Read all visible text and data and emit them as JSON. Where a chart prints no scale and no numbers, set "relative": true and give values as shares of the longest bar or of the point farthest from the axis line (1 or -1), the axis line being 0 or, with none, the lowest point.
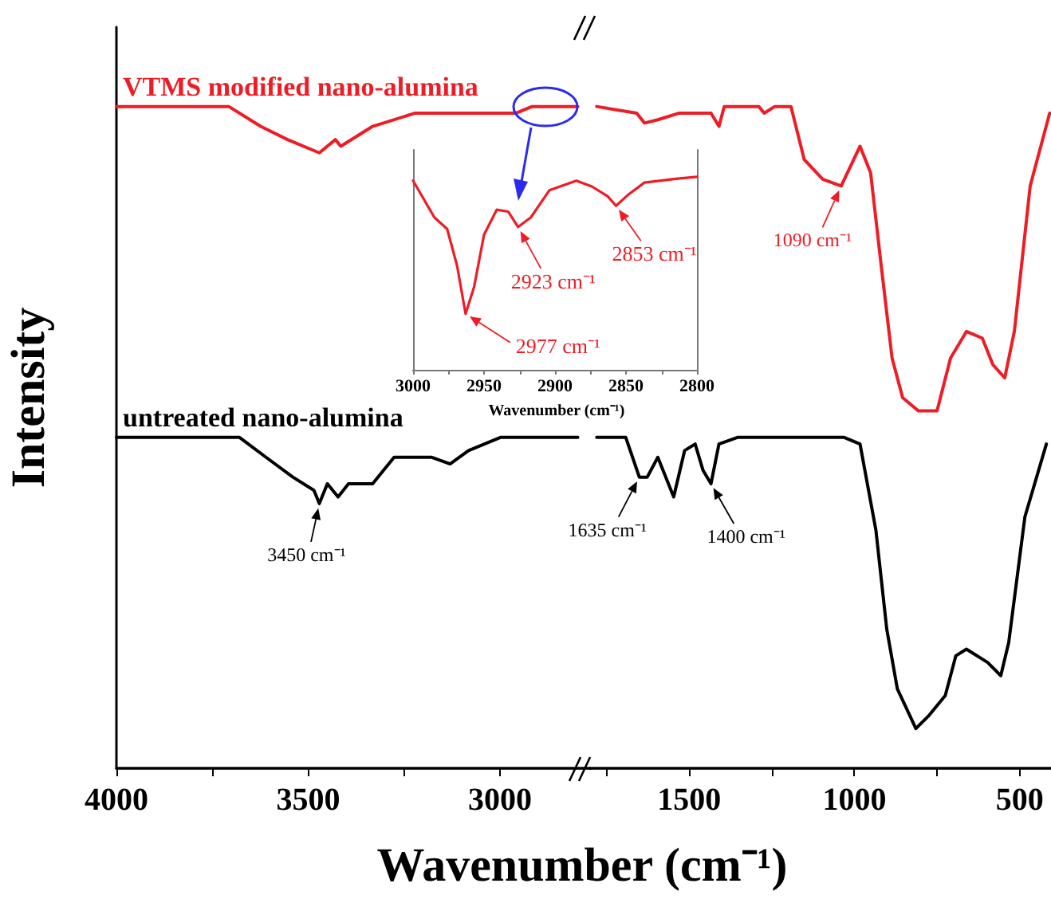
{
  "chart_data": [
    {
      "type": "line",
      "xlabel": "Wavenumber (cm⁻¹)",
      "ylabel": "Intensity",
      "relative": true,
      "xlim": [
        4000,
        2765
      ],
      "xticks": [
        4000,
        {
          "value": 3750,
          "label": null
        },
        3500,
        {
          "value": 3250,
          "label": null
        },
        3000
      ],
      "series": [
        {
          "name": "VTMS modified nano-alumina",
          "color": "#ee1c24",
          "x": [
            4000,
            3707,
            3624,
            3554,
            3471,
            3429,
            3415,
            3332,
            3221,
            3096,
            3062,
            2958,
            2916,
            2797
          ],
          "values": [
            1.0,
            1.0,
            0.97,
            0.95,
            0.93,
            0.95,
            0.94,
            0.97,
            0.99,
            0.99,
            0.99,
            0.99,
            1.0,
            1.0
          ]
        },
        {
          "name": "untreated nano-alumina",
          "color": "#000000",
          "x": [
            4000,
            3679,
            3610,
            3540,
            3485,
            3471,
            3450,
            3422,
            3395,
            3332,
            3276,
            3179,
            3130,
            3082,
            2999,
            2797
          ],
          "values": [
            0.5,
            0.5,
            0.47,
            0.44,
            0.42,
            0.4,
            0.43,
            0.41,
            0.43,
            0.43,
            0.47,
            0.47,
            0.46,
            0.48,
            0.5,
            0.5
          ]
        }
      ],
      "annotations": [
        {
          "text": "3450 cm⁻¹",
          "x": 3471,
          "y": 0.4
        }
      ]
    },
    {
      "type": "line",
      "relative": true,
      "xlim": [
        1800,
        405
      ],
      "xticks": [
        {
          "value": 1750,
          "label": null
        },
        1500,
        {
          "value": 1250,
          "label": null
        },
        1000,
        {
          "value": 750,
          "label": null
        },
        500
      ],
      "series": [
        {
          "color": "#ee1c24",
          "x": [
            1780,
            1659,
            1635,
            1595,
            1530,
            1482,
            1434,
            1410,
            1394,
            1289,
            1273,
            1241,
            1192,
            1152,
            1096,
            1040,
            983,
            951,
            919,
            886,
            854,
            806,
            750,
            709,
            661,
            613,
            581,
            545,
            516,
            468,
            409
          ],
          "values": [
            1.0,
            0.99,
            0.975,
            0.98,
            0.99,
            0.99,
            0.99,
            0.97,
            1.0,
            1.0,
            0.99,
            1.0,
            1.0,
            0.92,
            0.89,
            0.88,
            0.94,
            0.9,
            0.76,
            0.62,
            0.56,
            0.54,
            0.54,
            0.62,
            0.66,
            0.65,
            0.61,
            0.59,
            0.66,
            0.88,
            0.99
          ]
        },
        {
          "color": "#000000",
          "x": [
            1780,
            1692,
            1651,
            1627,
            1595,
            1547,
            1514,
            1482,
            1458,
            1434,
            1410,
            1354,
            1031,
            983,
            935,
            902,
            870,
            814,
            774,
            725,
            693,
            661,
            597,
            557,
            533,
            484,
            419
          ],
          "values": [
            0.5,
            0.5,
            0.44,
            0.44,
            0.47,
            0.41,
            0.48,
            0.49,
            0.45,
            0.43,
            0.49,
            0.5,
            0.5,
            0.49,
            0.36,
            0.21,
            0.12,
            0.06,
            0.08,
            0.11,
            0.17,
            0.18,
            0.16,
            0.14,
            0.19,
            0.38,
            0.49
          ]
        }
      ],
      "annotations": [
        {
          "text": "1635 cm⁻¹",
          "x": 1651,
          "y": 0.44
        },
        {
          "text": "1400 cm⁻¹",
          "x": 1434,
          "y": 0.43
        },
        {
          "text": "1090 cm⁻¹",
          "x": 1040,
          "y": 0.88
        }
      ]
    },
    {
      "type": "line",
      "xlabel": "Wavenumber (cm⁻¹)",
      "relative": true,
      "xlim": [
        3000,
        2800
      ],
      "xticks": [
        3000,
        {
          "value": 2975,
          "label": null
        },
        2950,
        {
          "value": 2925,
          "label": null
        },
        2900,
        {
          "value": 2875,
          "label": null
        },
        2850,
        {
          "value": 2825,
          "label": null
        },
        2800
      ],
      "series": [
        {
          "color": "#ee1c24",
          "x": [
            3000,
            2985,
            2976,
            2969,
            2963,
            2957,
            2950,
            2941,
            2933,
            2926,
            2917,
            2904,
            2885,
            2874,
            2863,
            2857,
            2848,
            2837,
            2815,
            2800
          ],
          "values": [
            0.98,
            0.79,
            0.73,
            0.54,
            0.29,
            0.43,
            0.7,
            0.83,
            0.82,
            0.74,
            0.79,
            0.93,
            0.98,
            0.95,
            0.9,
            0.85,
            0.91,
            0.97,
            0.99,
            1.0
          ]
        }
      ],
      "annotations": [
        {
          "text": "2977 cm⁻¹",
          "x": 2963,
          "y": 0.29
        },
        {
          "text": "2923 cm⁻¹",
          "x": 2926,
          "y": 0.74
        },
        {
          "text": "2853 cm⁻¹",
          "x": 2857,
          "y": 0.85
        }
      ]
    }
  ]
}
